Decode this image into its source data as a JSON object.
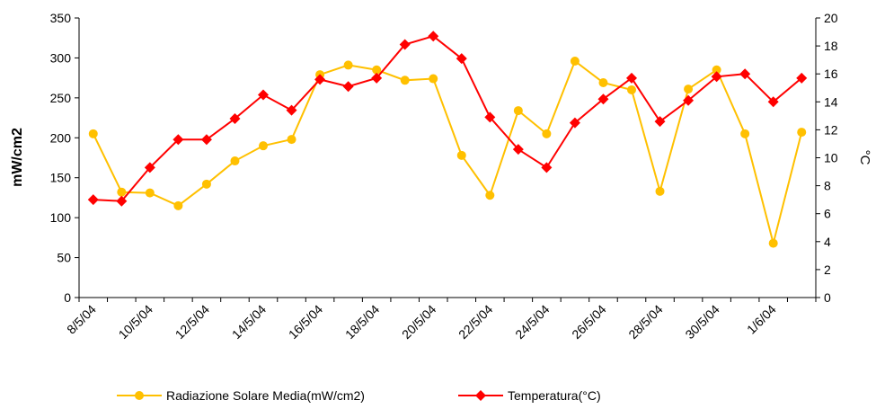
{
  "chart_data": {
    "type": "line",
    "categories": [
      "8/5/04",
      null,
      "10/5/04",
      null,
      "12/5/04",
      null,
      "14/5/04",
      null,
      "16/5/04",
      null,
      "18/5/04",
      null,
      "20/5/04",
      null,
      "22/5/04",
      null,
      "24/5/04",
      null,
      "26/5/04",
      null,
      "28/5/04",
      null,
      "30/5/04",
      null,
      "1/6/04",
      null
    ],
    "series": [
      {
        "name": "Radiazione Solare Media(mW/cm2)",
        "color": "#ffc000",
        "marker": "circle",
        "values": [
          205,
          132,
          131,
          115,
          142,
          171,
          190,
          198,
          279,
          291,
          285,
          272,
          274,
          178,
          128,
          234,
          205,
          296,
          269,
          260,
          133,
          261,
          285,
          205,
          68,
          207
        ]
      },
      {
        "name": "Temperatura(°C)",
        "color": "#ff0000",
        "marker": "diamond",
        "axis": "y2",
        "values": [
          7.0,
          6.9,
          9.3,
          11.3,
          11.3,
          12.8,
          14.5,
          13.4,
          15.6,
          15.1,
          15.7,
          18.1,
          18.7,
          17.1,
          12.9,
          10.6,
          9.3,
          12.5,
          14.2,
          15.7,
          12.6,
          14.1,
          15.8,
          16.0,
          14.0,
          15.7
        ]
      }
    ],
    "y_label": "mW/cm2",
    "y2_label": "°C",
    "ylim": [
      0,
      350
    ],
    "yticks": [
      0,
      50,
      100,
      150,
      200,
      250,
      300,
      350
    ],
    "y2lim": [
      0,
      20
    ],
    "y2ticks": [
      0,
      2,
      4,
      6,
      8,
      10,
      12,
      14,
      16,
      18,
      20
    ],
    "legend": "bottom"
  }
}
